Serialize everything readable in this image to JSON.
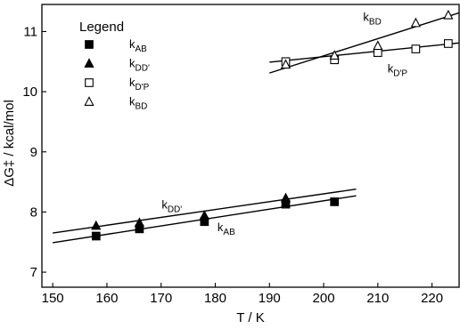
{
  "chart_data": {
    "type": "scatter",
    "title": "",
    "xlabel": "T / K",
    "ylabel": "ΔG‡ / kcal/mol",
    "xlim": [
      148,
      225
    ],
    "ylim": [
      6.75,
      11.45
    ],
    "x_ticks": [
      150,
      160,
      170,
      180,
      190,
      200,
      210,
      220
    ],
    "y_ticks": [
      7,
      8,
      9,
      10,
      11
    ],
    "grid": false,
    "legend": {
      "title": "Legend",
      "position": "top-left",
      "entries": [
        {
          "series": 0,
          "main": "k",
          "sub": "AB"
        },
        {
          "series": 1,
          "main": "k",
          "sub": "DD'"
        },
        {
          "series": 2,
          "main": "k",
          "sub": "D'P"
        },
        {
          "series": 3,
          "main": "k",
          "sub": "BD"
        }
      ]
    },
    "series": [
      {
        "label_main": "k",
        "label_sub": "AB",
        "marker": "filled-square",
        "points": [
          [
            158,
            7.6
          ],
          [
            166,
            7.72
          ],
          [
            178,
            7.84
          ],
          [
            193,
            8.13
          ],
          [
            202,
            8.17
          ]
        ],
        "fit": [
          [
            150,
            7.49
          ],
          [
            206,
            8.27
          ]
        ]
      },
      {
        "label_main": "k",
        "label_sub": "DD'",
        "marker": "filled-triangle",
        "points": [
          [
            158,
            7.77
          ],
          [
            166,
            7.82
          ],
          [
            178,
            7.94
          ],
          [
            193,
            8.23
          ]
        ],
        "fit": [
          [
            150,
            7.65
          ],
          [
            206,
            8.38
          ]
        ]
      },
      {
        "label_main": "k",
        "label_sub": "D'P",
        "marker": "open-square",
        "points": [
          [
            193,
            10.5
          ],
          [
            202,
            10.53
          ],
          [
            210,
            10.65
          ],
          [
            217,
            10.71
          ],
          [
            223,
            10.8
          ]
        ],
        "fit": [
          [
            190,
            10.49
          ],
          [
            225,
            10.81
          ]
        ]
      },
      {
        "label_main": "k",
        "label_sub": "BD",
        "marker": "open-triangle",
        "points": [
          [
            193,
            10.45
          ],
          [
            202,
            10.6
          ],
          [
            210,
            10.76
          ],
          [
            217,
            11.14
          ],
          [
            223,
            11.27
          ]
        ],
        "fit": [
          [
            190,
            10.31
          ],
          [
            225,
            11.31
          ]
        ]
      }
    ],
    "annotations": [
      {
        "main": "k",
        "sub": "BD",
        "x": 207.3,
        "y": 11.18
      },
      {
        "main": "k",
        "sub": "D'P",
        "x": 211.8,
        "y": 10.32
      },
      {
        "main": "k",
        "sub": "DD'",
        "x": 170.1,
        "y": 8.06
      },
      {
        "main": "k",
        "sub": "AB",
        "x": 180.4,
        "y": 7.68
      }
    ]
  }
}
